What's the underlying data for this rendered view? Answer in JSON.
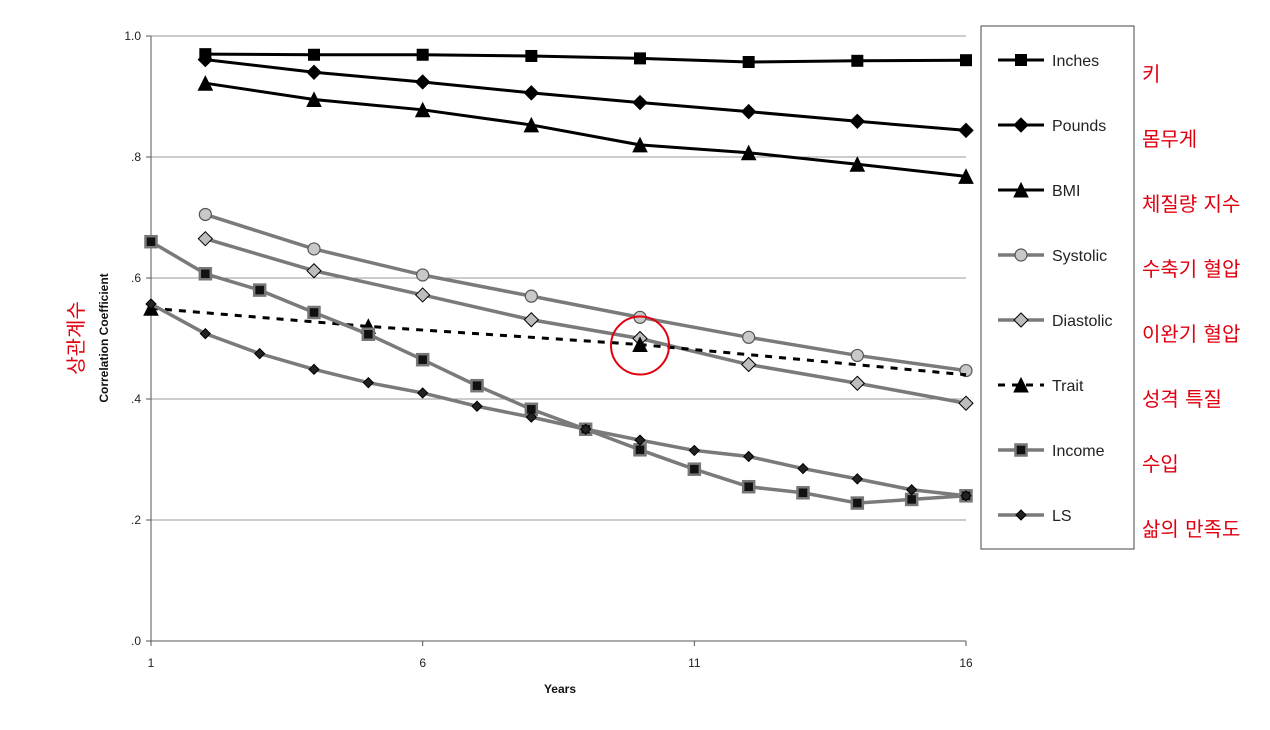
{
  "chart_data": {
    "type": "line",
    "title": "",
    "xlabel": "Years",
    "ylabel": "Correlation Coefficient",
    "ylabel_translation": "상관계수",
    "xlim": [
      1,
      16
    ],
    "ylim": [
      0,
      1
    ],
    "x_ticks": [
      1,
      6,
      11,
      16
    ],
    "x_tick_labels": [
      "1",
      "6",
      "11",
      "16"
    ],
    "y_ticks": [
      0,
      0.2,
      0.4,
      0.6,
      0.8,
      1.0
    ],
    "y_tick_labels": [
      ".0",
      ".2",
      ".4",
      ".6",
      ".8",
      "1.0"
    ],
    "grid": "horizontal",
    "legend_position": "right",
    "series": [
      {
        "name": "Inches",
        "translation": "키",
        "marker": "square",
        "color": "#000000",
        "dash": false,
        "x": [
          2,
          4,
          6,
          8,
          10,
          12,
          14,
          16
        ],
        "y": [
          0.97,
          0.969,
          0.969,
          0.967,
          0.963,
          0.957,
          0.959,
          0.96
        ]
      },
      {
        "name": "Pounds",
        "translation": "몸무게",
        "marker": "diamond",
        "color": "#000000",
        "dash": false,
        "x": [
          2,
          4,
          6,
          8,
          10,
          12,
          14,
          16
        ],
        "y": [
          0.961,
          0.94,
          0.924,
          0.906,
          0.89,
          0.875,
          0.859,
          0.844
        ]
      },
      {
        "name": "BMI",
        "translation": "체질량 지수",
        "marker": "triangle",
        "color": "#000000",
        "dash": false,
        "x": [
          2,
          4,
          6,
          8,
          10,
          12,
          14,
          16
        ],
        "y": [
          0.922,
          0.895,
          0.878,
          0.853,
          0.82,
          0.807,
          0.788,
          0.768
        ]
      },
      {
        "name": "Systolic",
        "translation": "수축기 혈압",
        "marker": "circle",
        "color": "#808080",
        "dash": false,
        "x": [
          2,
          4,
          6,
          8,
          10,
          12,
          14,
          16
        ],
        "y": [
          0.705,
          0.648,
          0.605,
          0.57,
          0.535,
          0.502,
          0.472,
          0.447
        ]
      },
      {
        "name": "Diastolic",
        "translation": "이완기 혈압",
        "marker": "diamond",
        "color": "#808080",
        "dash": false,
        "x": [
          2,
          4,
          6,
          8,
          10,
          12,
          14,
          16
        ],
        "y": [
          0.665,
          0.612,
          0.572,
          0.531,
          0.5,
          0.457,
          0.426,
          0.393
        ]
      },
      {
        "name": "Trait",
        "translation": "성격 특질",
        "marker": "triangle",
        "color": "#000000",
        "dash": true,
        "x": [
          1,
          5,
          10,
          16
        ],
        "y": [
          0.55,
          0.52,
          0.49,
          0.44
        ]
      },
      {
        "name": "Income",
        "translation": "수입",
        "marker": "square",
        "color": "#808080",
        "dash": false,
        "x": [
          1,
          2,
          3,
          4,
          5,
          6,
          7,
          8,
          9,
          10,
          11,
          12,
          13,
          14,
          15,
          16
        ],
        "y": [
          0.66,
          0.607,
          0.58,
          0.543,
          0.507,
          0.465,
          0.422,
          0.383,
          0.35,
          0.316,
          0.284,
          0.255,
          0.245,
          0.228,
          0.234,
          0.24
        ]
      },
      {
        "name": "LS",
        "translation": "삶의 만족도",
        "marker": "diamond-small",
        "color": "#808080",
        "dash": false,
        "x": [
          1,
          2,
          3,
          4,
          5,
          6,
          7,
          8,
          9,
          10,
          11,
          12,
          13,
          14,
          15,
          16
        ],
        "y": [
          0.557,
          0.508,
          0.475,
          0.449,
          0.427,
          0.41,
          0.388,
          0.37,
          0.35,
          0.332,
          0.315,
          0.305,
          0.285,
          0.268,
          0.25,
          0.24
        ]
      }
    ],
    "annotation": {
      "type": "circle",
      "series": "Trait",
      "x": 10,
      "y": 0.49,
      "color": "#e0000f"
    }
  }
}
